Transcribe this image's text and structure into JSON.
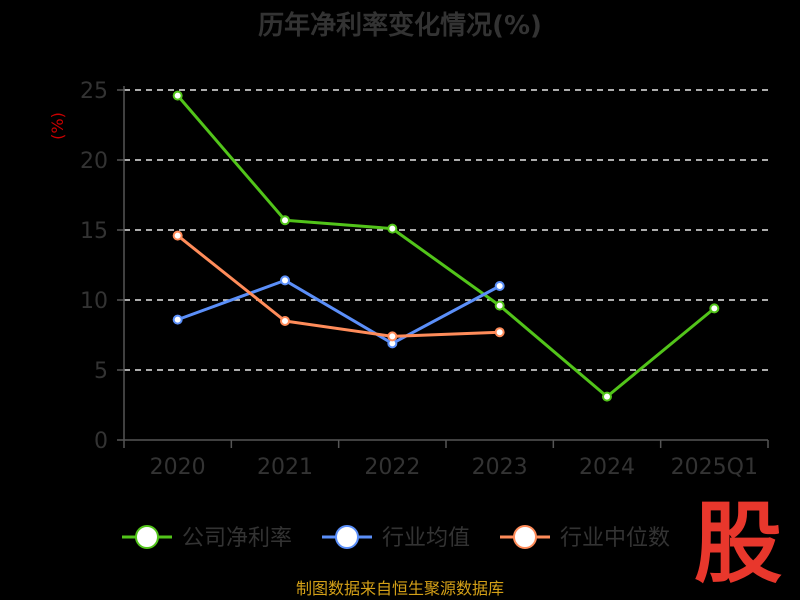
{
  "chart_data": {
    "type": "line",
    "title": "历年净利率变化情况(%)",
    "ylabel": "(%)",
    "categories": [
      "2020",
      "2021",
      "2022",
      "2023",
      "2024",
      "2025Q1"
    ],
    "ylim": [
      0,
      25
    ],
    "yticks": [
      0,
      5,
      10,
      15,
      20,
      25
    ],
    "grid": "horizontal dashed",
    "legend_position": "bottom",
    "series": [
      {
        "name": "公司净利率",
        "color": "#52c41a",
        "values": [
          24.6,
          15.7,
          15.1,
          9.6,
          3.1,
          9.4
        ]
      },
      {
        "name": "行业均值",
        "color": "#5b8ff9",
        "values": [
          8.6,
          11.4,
          6.9,
          11.0,
          null,
          null
        ]
      },
      {
        "name": "行业中位数",
        "color": "#ff8c5a",
        "values": [
          14.6,
          8.5,
          7.4,
          7.7,
          null,
          null
        ]
      }
    ]
  },
  "footer": {
    "source": "制图数据来自恒生聚源数据库"
  },
  "logo": {
    "text": "股"
  }
}
